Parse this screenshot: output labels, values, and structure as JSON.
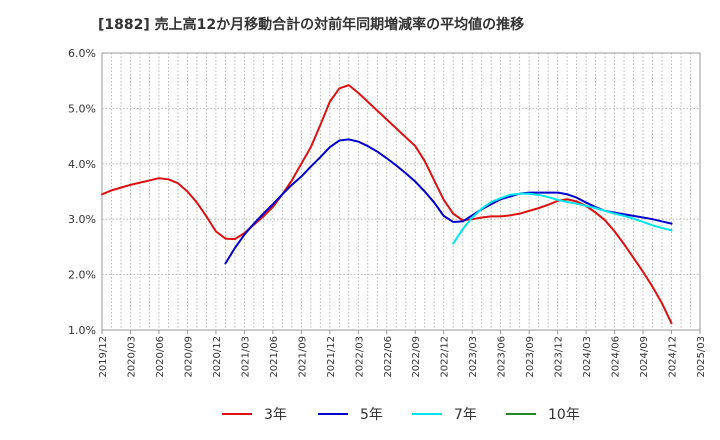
{
  "chart_data": {
    "type": "line",
    "title": "[1882]  売上高12か月移動合計の対前年同期増減率の平均値の推移",
    "xlabel": "",
    "ylabel": "",
    "ylim": [
      1.0,
      6.0
    ],
    "yticks": [
      "1.0%",
      "2.0%",
      "3.0%",
      "4.0%",
      "5.0%",
      "6.0%"
    ],
    "xticks": [
      "2019/12",
      "2020/03",
      "2020/06",
      "2020/09",
      "2020/12",
      "2021/03",
      "2021/06",
      "2021/09",
      "2021/12",
      "2022/03",
      "2022/06",
      "2022/09",
      "2022/12",
      "2023/03",
      "2023/06",
      "2023/09",
      "2023/12",
      "2024/03",
      "2024/06",
      "2024/09",
      "2024/12",
      "2025/03"
    ],
    "grid": true,
    "legend_position": "bottom",
    "series": [
      {
        "name": "3年",
        "color": "#dd1111",
        "points": [
          [
            "2019/12",
            3.45
          ],
          [
            "2020/01",
            3.52
          ],
          [
            "2020/02",
            3.57
          ],
          [
            "2020/03",
            3.62
          ],
          [
            "2020/04",
            3.66
          ],
          [
            "2020/05",
            3.7
          ],
          [
            "2020/06",
            3.74
          ],
          [
            "2020/07",
            3.72
          ],
          [
            "2020/08",
            3.65
          ],
          [
            "2020/09",
            3.5
          ],
          [
            "2020/10",
            3.3
          ],
          [
            "2020/11",
            3.05
          ],
          [
            "2020/12",
            2.78
          ],
          [
            "2021/01",
            2.65
          ],
          [
            "2021/02",
            2.64
          ],
          [
            "2021/03",
            2.75
          ],
          [
            "2021/04",
            2.9
          ],
          [
            "2021/05",
            3.05
          ],
          [
            "2021/06",
            3.22
          ],
          [
            "2021/07",
            3.45
          ],
          [
            "2021/08",
            3.7
          ],
          [
            "2021/09",
            4.0
          ],
          [
            "2021/10",
            4.3
          ],
          [
            "2021/11",
            4.7
          ],
          [
            "2021/12",
            5.12
          ],
          [
            "2022/01",
            5.36
          ],
          [
            "2022/02",
            5.42
          ],
          [
            "2022/03",
            5.28
          ],
          [
            "2022/04",
            5.12
          ],
          [
            "2022/05",
            4.96
          ],
          [
            "2022/06",
            4.8
          ],
          [
            "2022/07",
            4.64
          ],
          [
            "2022/08",
            4.48
          ],
          [
            "2022/09",
            4.32
          ],
          [
            "2022/10",
            4.05
          ],
          [
            "2022/11",
            3.7
          ],
          [
            "2022/12",
            3.35
          ],
          [
            "2023/01",
            3.1
          ],
          [
            "2023/02",
            2.98
          ],
          [
            "2023/03",
            3.0
          ],
          [
            "2023/04",
            3.03
          ],
          [
            "2023/05",
            3.05
          ],
          [
            "2023/06",
            3.05
          ],
          [
            "2023/07",
            3.07
          ],
          [
            "2023/08",
            3.1
          ],
          [
            "2023/09",
            3.15
          ],
          [
            "2023/10",
            3.2
          ],
          [
            "2023/11",
            3.26
          ],
          [
            "2023/12",
            3.33
          ],
          [
            "2024/01",
            3.36
          ],
          [
            "2024/02",
            3.32
          ],
          [
            "2024/03",
            3.24
          ],
          [
            "2024/04",
            3.12
          ],
          [
            "2024/05",
            2.98
          ],
          [
            "2024/06",
            2.78
          ],
          [
            "2024/07",
            2.55
          ],
          [
            "2024/08",
            2.3
          ],
          [
            "2024/09",
            2.05
          ],
          [
            "2024/10",
            1.78
          ],
          [
            "2024/11",
            1.48
          ],
          [
            "2024/12",
            1.12
          ]
        ]
      },
      {
        "name": "5年",
        "color": "#0000cc",
        "points": [
          [
            "2021/01",
            2.2
          ],
          [
            "2021/02",
            2.48
          ],
          [
            "2021/03",
            2.72
          ],
          [
            "2021/04",
            2.92
          ],
          [
            "2021/05",
            3.1
          ],
          [
            "2021/06",
            3.27
          ],
          [
            "2021/07",
            3.45
          ],
          [
            "2021/08",
            3.62
          ],
          [
            "2021/09",
            3.77
          ],
          [
            "2021/10",
            3.95
          ],
          [
            "2021/11",
            4.12
          ],
          [
            "2021/12",
            4.3
          ],
          [
            "2022/01",
            4.42
          ],
          [
            "2022/02",
            4.44
          ],
          [
            "2022/03",
            4.4
          ],
          [
            "2022/04",
            4.32
          ],
          [
            "2022/05",
            4.22
          ],
          [
            "2022/06",
            4.1
          ],
          [
            "2022/07",
            3.97
          ],
          [
            "2022/08",
            3.83
          ],
          [
            "2022/09",
            3.68
          ],
          [
            "2022/10",
            3.5
          ],
          [
            "2022/11",
            3.3
          ],
          [
            "2022/12",
            3.06
          ],
          [
            "2023/01",
            2.95
          ],
          [
            "2023/02",
            2.96
          ],
          [
            "2023/03",
            3.07
          ],
          [
            "2023/04",
            3.18
          ],
          [
            "2023/05",
            3.27
          ],
          [
            "2023/06",
            3.36
          ],
          [
            "2023/07",
            3.41
          ],
          [
            "2023/08",
            3.46
          ],
          [
            "2023/09",
            3.48
          ],
          [
            "2023/10",
            3.48
          ],
          [
            "2023/11",
            3.48
          ],
          [
            "2023/12",
            3.48
          ],
          [
            "2024/01",
            3.45
          ],
          [
            "2024/02",
            3.39
          ],
          [
            "2024/03",
            3.3
          ],
          [
            "2024/04",
            3.22
          ],
          [
            "2024/05",
            3.15
          ],
          [
            "2024/06",
            3.12
          ],
          [
            "2024/07",
            3.09
          ],
          [
            "2024/08",
            3.06
          ],
          [
            "2024/09",
            3.03
          ],
          [
            "2024/10",
            3.0
          ],
          [
            "2024/11",
            2.96
          ],
          [
            "2024/12",
            2.92
          ]
        ]
      },
      {
        "name": "7年",
        "color": "#00e5ee",
        "points": [
          [
            "2023/01",
            2.56
          ],
          [
            "2023/02",
            2.82
          ],
          [
            "2023/03",
            3.03
          ],
          [
            "2023/04",
            3.19
          ],
          [
            "2023/05",
            3.31
          ],
          [
            "2023/06",
            3.38
          ],
          [
            "2023/07",
            3.44
          ],
          [
            "2023/08",
            3.46
          ],
          [
            "2023/09",
            3.46
          ],
          [
            "2023/10",
            3.44
          ],
          [
            "2023/11",
            3.4
          ],
          [
            "2023/12",
            3.35
          ],
          [
            "2024/01",
            3.31
          ],
          [
            "2024/02",
            3.28
          ],
          [
            "2024/03",
            3.24
          ],
          [
            "2024/04",
            3.2
          ],
          [
            "2024/05",
            3.15
          ],
          [
            "2024/06",
            3.1
          ],
          [
            "2024/07",
            3.06
          ],
          [
            "2024/08",
            3.01
          ],
          [
            "2024/09",
            2.95
          ],
          [
            "2024/10",
            2.89
          ],
          [
            "2024/11",
            2.84
          ],
          [
            "2024/12",
            2.8
          ]
        ]
      },
      {
        "name": "10年",
        "color": "#228822",
        "points": []
      }
    ]
  }
}
